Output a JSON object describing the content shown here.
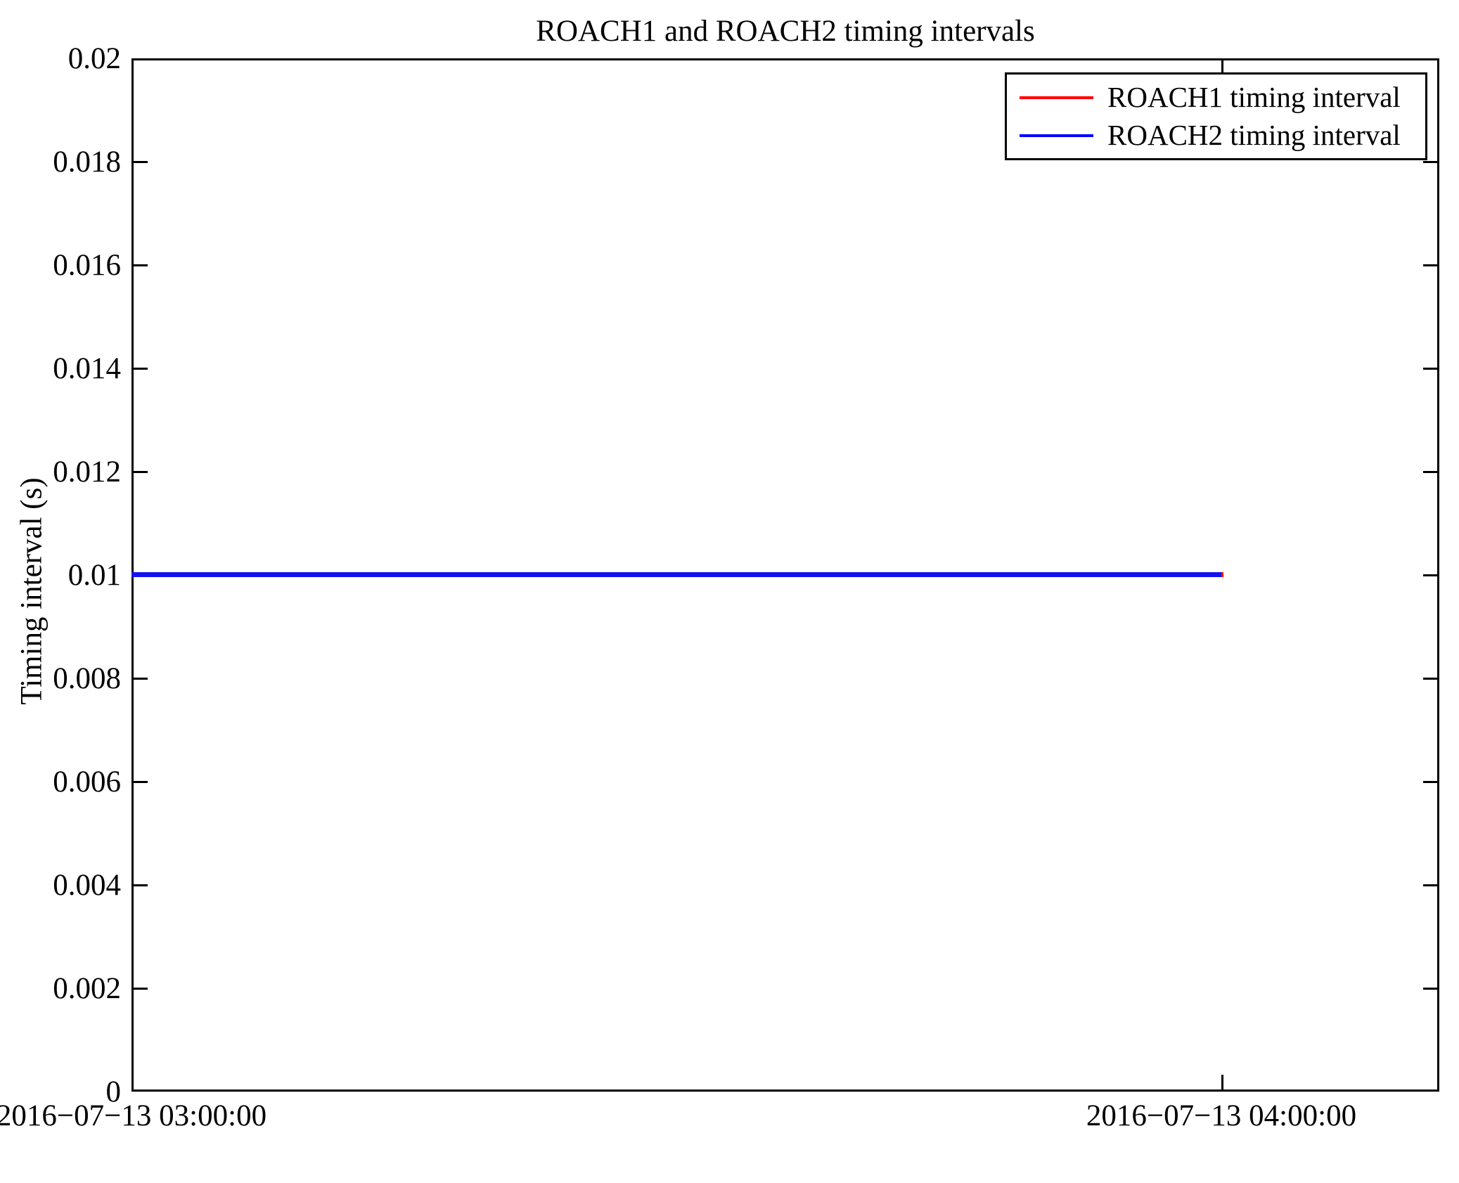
{
  "figure": {
    "background": "#ffffff",
    "axis_color": "#000000"
  },
  "chart_data": {
    "type": "line",
    "title": "ROACH1 and ROACH2 timing intervals",
    "xlabel": "",
    "ylabel": "Timing interval (s)",
    "ylim": [
      0,
      0.02
    ],
    "grid": false,
    "yticks": [
      {
        "value": 0,
        "label": "0"
      },
      {
        "value": 0.002,
        "label": "0.002"
      },
      {
        "value": 0.004,
        "label": "0.004"
      },
      {
        "value": 0.006,
        "label": "0.006"
      },
      {
        "value": 0.008,
        "label": "0.008"
      },
      {
        "value": 0.01,
        "label": "0.01"
      },
      {
        "value": 0.012,
        "label": "0.012"
      },
      {
        "value": 0.014,
        "label": "0.014"
      },
      {
        "value": 0.016,
        "label": "0.016"
      },
      {
        "value": 0.018,
        "label": "0.018"
      },
      {
        "value": 0.02,
        "label": "0.02"
      }
    ],
    "xlim_hours": [
      0,
      1.2
    ],
    "xticks": [
      {
        "hours": 0,
        "label": "2016−07−13 03:00:00"
      },
      {
        "hours": 1,
        "label": "2016−07−13 04:00:00"
      }
    ],
    "series": [
      {
        "name": "ROACH1 timing interval",
        "color": "#ff0000",
        "y_value": 0.01,
        "x_start_hours": 0,
        "x_end_hours": 1.002
      },
      {
        "name": "ROACH2 timing interval",
        "color": "#1212ee",
        "y_value": 0.01,
        "x_start_hours": 0,
        "x_end_hours": 1.0
      }
    ],
    "legend": {
      "position": "upper right",
      "entries": [
        {
          "label": "ROACH1 timing interval",
          "color": "#ff0000"
        },
        {
          "label": "ROACH2 timing interval",
          "color": "#0000ff"
        }
      ]
    }
  }
}
